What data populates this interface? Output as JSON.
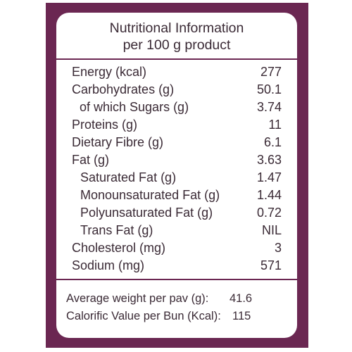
{
  "label": {
    "title_line1": "Nutritional Information",
    "title_line2": "per 100 g product",
    "rows": [
      {
        "name": "Energy (kcal)",
        "value": "277"
      },
      {
        "name": "Carbohydrates (g)",
        "value": "50.1"
      },
      {
        "name": "of which Sugars (g)",
        "value": "3.74"
      },
      {
        "name": "Proteins (g)",
        "value": "11"
      },
      {
        "name": "Dietary Fibre (g)",
        "value": "6.1"
      },
      {
        "name": "Fat (g)",
        "value": "3.63"
      },
      {
        "name": "Saturated Fat (g)",
        "value": "1.47"
      },
      {
        "name": "Monounsaturated Fat (g)",
        "value": "1.44"
      },
      {
        "name": "Polyunsaturated Fat (g)",
        "value": "0.72"
      },
      {
        "name": "Trans Fat (g)",
        "value": "NIL"
      },
      {
        "name": "Cholesterol (mg)",
        "value": "3"
      },
      {
        "name": "Sodium (mg)",
        "value": "571"
      }
    ],
    "footer": [
      {
        "name": "Average weight per pav (g):",
        "value": "41.6"
      },
      {
        "name": "Calorific Value per Bun (Kcal):",
        "value": "115"
      }
    ]
  },
  "colors": {
    "border": "#6b2752",
    "text": "#3a2a35",
    "background": "#ffffff"
  }
}
